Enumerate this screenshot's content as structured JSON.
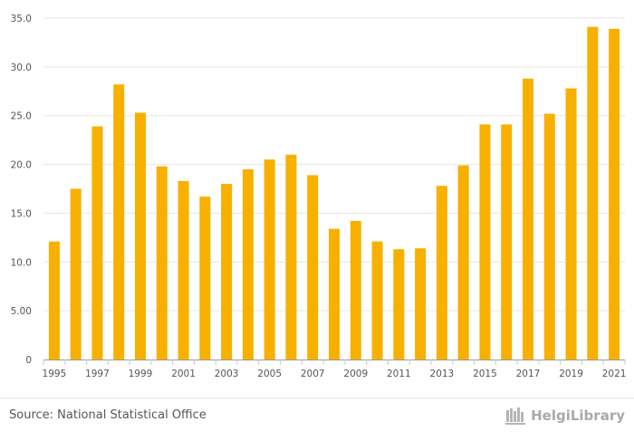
{
  "chart_data": {
    "type": "bar",
    "categories": [
      "1995",
      "1996",
      "1997",
      "1998",
      "1999",
      "2000",
      "2001",
      "2002",
      "2003",
      "2004",
      "2005",
      "2006",
      "2007",
      "2008",
      "2009",
      "2010",
      "2011",
      "2012",
      "2013",
      "2014",
      "2015",
      "2016",
      "2017",
      "2018",
      "2019",
      "2020",
      "2021"
    ],
    "values": [
      12.1,
      17.5,
      23.9,
      28.2,
      25.3,
      19.8,
      18.3,
      16.7,
      18.0,
      19.5,
      20.5,
      21.0,
      18.9,
      13.4,
      14.2,
      12.1,
      11.3,
      11.4,
      17.8,
      19.9,
      24.1,
      24.1,
      28.8,
      25.2,
      27.8,
      34.1,
      33.9
    ],
    "x_tick_labels": [
      "1995",
      "",
      "1997",
      "",
      "1999",
      "",
      "2001",
      "",
      "2003",
      "",
      "2005",
      "",
      "2007",
      "",
      "2009",
      "",
      "2011",
      "",
      "2013",
      "",
      "2015",
      "",
      "2017",
      "",
      "2019",
      "",
      "2021"
    ],
    "y_ticks": [
      0,
      5,
      10,
      15,
      20,
      25,
      30,
      35
    ],
    "y_tick_labels": [
      "0",
      "5.00",
      "10.0",
      "15.0",
      "20.0",
      "25.0",
      "30.0",
      "35.0"
    ],
    "ylim": [
      0,
      35
    ],
    "bar_color": "#F7B000",
    "grid_color": "#e6e6e6",
    "title": "",
    "xlabel": "",
    "ylabel": ""
  },
  "footer": {
    "source": "Source: National Statistical Office",
    "brand": "HelgiLibrary"
  }
}
